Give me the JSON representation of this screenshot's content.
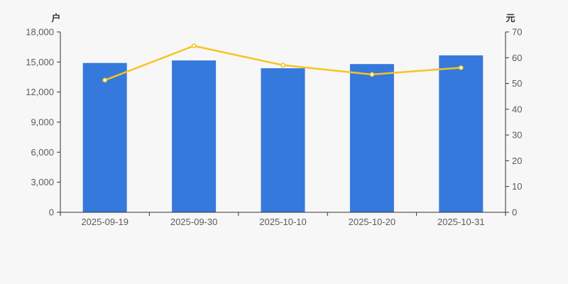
{
  "page": {
    "background_color": "#f7f7f7"
  },
  "chart_data": {
    "type": "bar",
    "title": "",
    "legend": false,
    "grid": false,
    "categories": [
      "2025-09-19",
      "2025-09-30",
      "2025-10-10",
      "2025-10-20",
      "2025-10-31"
    ],
    "series": [
      {
        "name": "holder-count-bars",
        "type": "bar",
        "axis": "left",
        "values": [
          14900,
          15160,
          14380,
          14800,
          15660
        ],
        "color": "#3679DC"
      },
      {
        "name": "price-line",
        "type": "line",
        "axis": "right",
        "values": [
          51.3,
          64.6,
          57.1,
          53.5,
          56.1
        ],
        "color": "#F6C41F",
        "marker_fill": "#ffffff"
      }
    ],
    "left_axis": {
      "unit_label": "户",
      "min": 0,
      "max": 18000,
      "tick_step": 3000,
      "tick_labels": [
        "0",
        "3,000",
        "6,000",
        "9,000",
        "12,000",
        "15,000",
        "18,000"
      ]
    },
    "right_axis": {
      "unit_label": "元",
      "min": 0,
      "max": 70,
      "tick_step": 10,
      "tick_labels": [
        "0",
        "10",
        "20",
        "30",
        "40",
        "50",
        "60",
        "70"
      ]
    },
    "axis_color": "#333333",
    "tick_text_color": "#5b5b5b"
  }
}
